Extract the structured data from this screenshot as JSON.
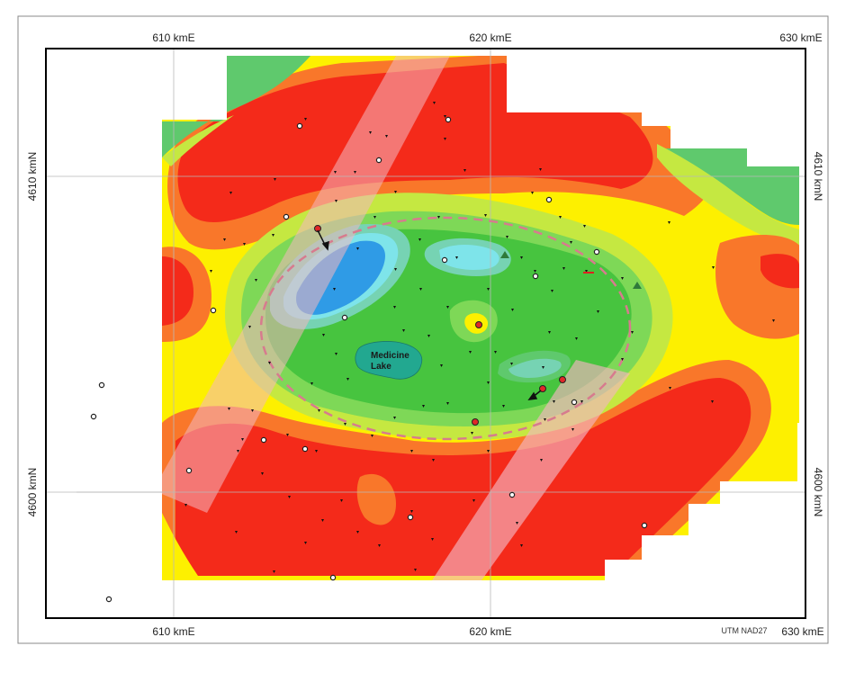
{
  "map": {
    "x_ticks_top": [
      "610 kmE",
      "620 kmE",
      "630 kmE"
    ],
    "x_ticks_bottom": [
      "610 kmE",
      "620 kmE",
      "630 kmE"
    ],
    "y_ticks_left": [
      "4610 kmN",
      "4600 kmN"
    ],
    "y_ticks_right": [
      "4610 kmN",
      "4600 kmN"
    ],
    "lake_label_line1": "Medicine",
    "lake_label_line2": "Lake",
    "datum_label": "UTM NAD27"
  },
  "colors": {
    "red": "#f42a1a",
    "orange": "#f9772a",
    "yellow": "#fdf000",
    "yellow_green": "#c5e841",
    "light_green": "#7ed857",
    "green": "#47c43f",
    "green2": "#5fc96d",
    "teal": "#76d3b3",
    "cyan": "#7ee4ea",
    "blue": "#2f9be6",
    "lake": "#22a890",
    "ellipse": "#d77b8e",
    "band": "#f4b6c0"
  }
}
